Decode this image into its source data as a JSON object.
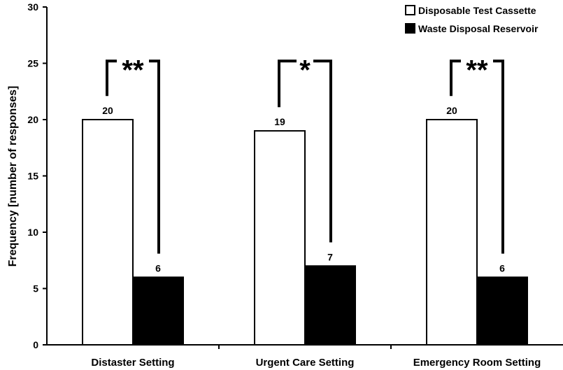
{
  "chart_data": {
    "type": "bar",
    "ylabel": "Frequency [number of responses]",
    "xlabel": "",
    "ylim": [
      0,
      30
    ],
    "yticks": [
      0,
      5,
      10,
      15,
      20,
      25,
      30
    ],
    "grid": false,
    "legend_position": "top-right",
    "categories": [
      "Distaster Setting",
      "Urgent Care Setting",
      "Emergency Room Setting"
    ],
    "series": [
      {
        "name": "Disposable Test Cassette",
        "values": [
          20,
          19,
          20
        ],
        "color": "#ffffff"
      },
      {
        "name": "Waste Disposal Reservoir",
        "values": [
          6,
          7,
          6
        ],
        "color": "#000000"
      }
    ],
    "data_labels": [
      [
        "20",
        "19",
        "20"
      ],
      [
        "6",
        "7",
        "6"
      ]
    ],
    "significance": [
      "**",
      "*",
      "**"
    ]
  }
}
